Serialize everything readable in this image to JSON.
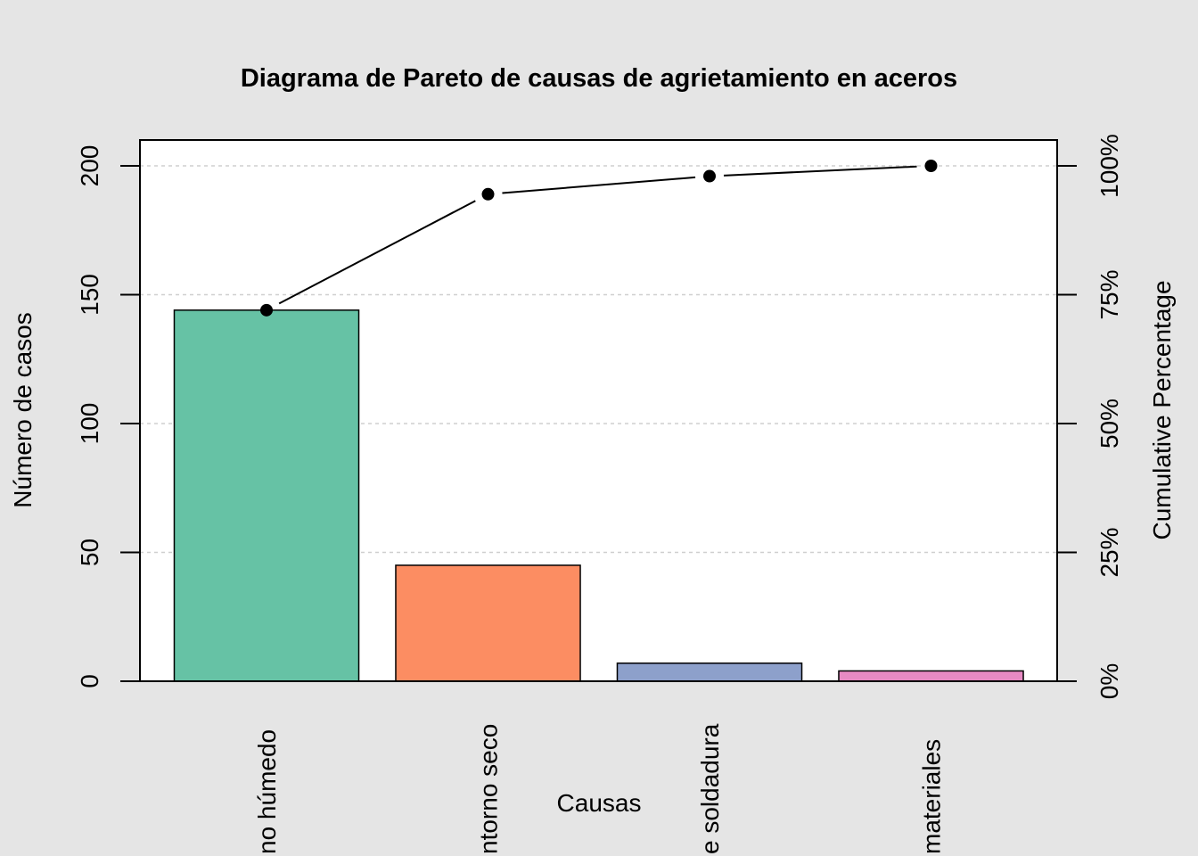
{
  "chart_data": {
    "type": "bar",
    "title": "Diagrama de Pareto de causas de agrietamiento en aceros",
    "xlabel": "Causas",
    "ylabel": "Número de casos",
    "y2label": "Cumulative Percentage",
    "categories": [
      "Entorno húmedo",
      "Entorno seco",
      "Mala soldadura",
      "Defectos de materiales"
    ],
    "category_labels_visible": [
      "no húmedo",
      "ntorno seco",
      "e soldadura",
      "materiales"
    ],
    "values": [
      144,
      45,
      7,
      4
    ],
    "cumulative_percent": [
      72.0,
      94.5,
      98.0,
      100.0
    ],
    "bar_colors": [
      "#66c2a5",
      "#fc8d62",
      "#8da0cb",
      "#e78ac3"
    ],
    "ylim": [
      0,
      200
    ],
    "yticks": [
      0,
      50,
      100,
      150,
      200
    ],
    "ytick_labels": [
      "0",
      "50",
      "100",
      "150",
      "200"
    ],
    "y2ticks": [
      0,
      25,
      50,
      75,
      100
    ],
    "y2tick_labels": [
      "0%",
      "25%",
      "50%",
      "75%",
      "100%"
    ],
    "grid": true,
    "background": "#e5e5e5"
  }
}
